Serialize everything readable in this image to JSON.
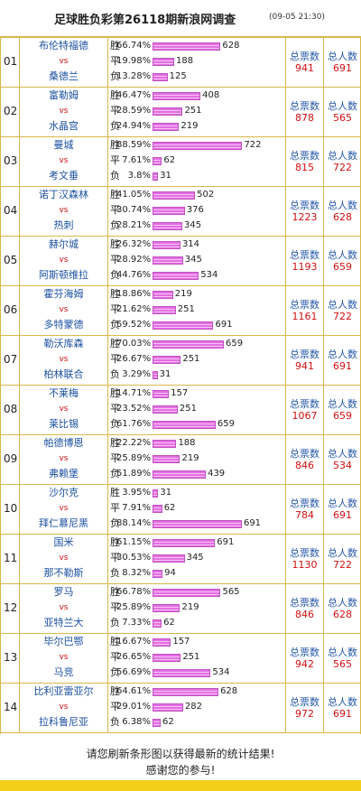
{
  "header": {
    "title": "足球胜负彩第26118期新浪网调查",
    "time": "(09-05 21:30)"
  },
  "labels": {
    "outcomes": [
      "胜",
      "平",
      "负"
    ],
    "vs": "vs",
    "total_votes": "总票数",
    "total_people": "总人数"
  },
  "matches": [
    {
      "no": "01",
      "home": "布伦特福德",
      "away": "桑德兰",
      "results": [
        {
          "pct": 66.74,
          "pct_label": "66.74%",
          "count": 628
        },
        {
          "pct": 19.98,
          "pct_label": "19.98%",
          "count": 188
        },
        {
          "pct": 13.28,
          "pct_label": "13.28%",
          "count": 125
        }
      ],
      "votes": 941,
      "people": 691
    },
    {
      "no": "02",
      "home": "富勒姆",
      "away": "水晶宫",
      "results": [
        {
          "pct": 46.47,
          "pct_label": "46.47%",
          "count": 408
        },
        {
          "pct": 28.59,
          "pct_label": "28.59%",
          "count": 251
        },
        {
          "pct": 24.94,
          "pct_label": "24.94%",
          "count": 219
        }
      ],
      "votes": 878,
      "people": 565
    },
    {
      "no": "03",
      "home": "曼城",
      "away": "考文垂",
      "results": [
        {
          "pct": 88.59,
          "pct_label": "88.59%",
          "count": 722
        },
        {
          "pct": 7.61,
          "pct_label": "7.61%",
          "count": 62
        },
        {
          "pct": 3.8,
          "pct_label": "3.8%",
          "count": 31
        }
      ],
      "votes": 815,
      "people": 722
    },
    {
      "no": "04",
      "home": "诺丁汉森林",
      "away": "热刺",
      "results": [
        {
          "pct": 41.05,
          "pct_label": "41.05%",
          "count": 502
        },
        {
          "pct": 30.74,
          "pct_label": "30.74%",
          "count": 376
        },
        {
          "pct": 28.21,
          "pct_label": "28.21%",
          "count": 345
        }
      ],
      "votes": 1223,
      "people": 628
    },
    {
      "no": "05",
      "home": "赫尔城",
      "away": "阿斯顿维拉",
      "results": [
        {
          "pct": 26.32,
          "pct_label": "26.32%",
          "count": 314
        },
        {
          "pct": 28.92,
          "pct_label": "28.92%",
          "count": 345
        },
        {
          "pct": 44.76,
          "pct_label": "44.76%",
          "count": 534
        }
      ],
      "votes": 1193,
      "people": 659
    },
    {
      "no": "06",
      "home": "霍芬海姆",
      "away": "多特蒙德",
      "results": [
        {
          "pct": 18.86,
          "pct_label": "18.86%",
          "count": 219
        },
        {
          "pct": 21.62,
          "pct_label": "21.62%",
          "count": 251
        },
        {
          "pct": 59.52,
          "pct_label": "59.52%",
          "count": 691
        }
      ],
      "votes": 1161,
      "people": 722
    },
    {
      "no": "07",
      "home": "勒沃库森",
      "away": "柏林联合",
      "results": [
        {
          "pct": 70.03,
          "pct_label": "70.03%",
          "count": 659
        },
        {
          "pct": 26.67,
          "pct_label": "26.67%",
          "count": 251
        },
        {
          "pct": 3.29,
          "pct_label": "3.29%",
          "count": 31
        }
      ],
      "votes": 941,
      "people": 691
    },
    {
      "no": "08",
      "home": "不莱梅",
      "away": "莱比锡",
      "results": [
        {
          "pct": 14.71,
          "pct_label": "14.71%",
          "count": 157
        },
        {
          "pct": 23.52,
          "pct_label": "23.52%",
          "count": 251
        },
        {
          "pct": 61.76,
          "pct_label": "61.76%",
          "count": 659
        }
      ],
      "votes": 1067,
      "people": 659
    },
    {
      "no": "09",
      "home": "帕德博恩",
      "away": "弗赖堡",
      "results": [
        {
          "pct": 22.22,
          "pct_label": "22.22%",
          "count": 188
        },
        {
          "pct": 25.89,
          "pct_label": "25.89%",
          "count": 219
        },
        {
          "pct": 51.89,
          "pct_label": "51.89%",
          "count": 439
        }
      ],
      "votes": 846,
      "people": 534
    },
    {
      "no": "10",
      "home": "沙尔克",
      "away": "拜仁慕尼黑",
      "results": [
        {
          "pct": 3.95,
          "pct_label": "3.95%",
          "count": 31
        },
        {
          "pct": 7.91,
          "pct_label": "7.91%",
          "count": 62
        },
        {
          "pct": 88.14,
          "pct_label": "88.14%",
          "count": 691
        }
      ],
      "votes": 784,
      "people": 691
    },
    {
      "no": "11",
      "home": "国米",
      "away": "那不勒斯",
      "results": [
        {
          "pct": 61.15,
          "pct_label": "61.15%",
          "count": 691
        },
        {
          "pct": 30.53,
          "pct_label": "30.53%",
          "count": 345
        },
        {
          "pct": 8.32,
          "pct_label": "8.32%",
          "count": 94
        }
      ],
      "votes": 1130,
      "people": 722
    },
    {
      "no": "12",
      "home": "罗马",
      "away": "亚特兰大",
      "results": [
        {
          "pct": 66.78,
          "pct_label": "66.78%",
          "count": 565
        },
        {
          "pct": 25.89,
          "pct_label": "25.89%",
          "count": 219
        },
        {
          "pct": 7.33,
          "pct_label": "7.33%",
          "count": 62
        }
      ],
      "votes": 846,
      "people": 628
    },
    {
      "no": "13",
      "home": "毕尔巴鄂",
      "away": "马竞",
      "results": [
        {
          "pct": 16.67,
          "pct_label": "16.67%",
          "count": 157
        },
        {
          "pct": 26.65,
          "pct_label": "26.65%",
          "count": 251
        },
        {
          "pct": 56.69,
          "pct_label": "56.69%",
          "count": 534
        }
      ],
      "votes": 942,
      "people": 565
    },
    {
      "no": "14",
      "home": "比利亚雷亚尔",
      "away": "拉科鲁尼亚",
      "results": [
        {
          "pct": 64.61,
          "pct_label": "64.61%",
          "count": 628
        },
        {
          "pct": 29.01,
          "pct_label": "29.01%",
          "count": 282
        },
        {
          "pct": 6.38,
          "pct_label": "6.38%",
          "count": 62
        }
      ],
      "votes": 972,
      "people": 691
    }
  ],
  "footer": {
    "line1": "请您刷新条形图以获得最新的统计结果!",
    "line2": "感谢您的参与!"
  }
}
